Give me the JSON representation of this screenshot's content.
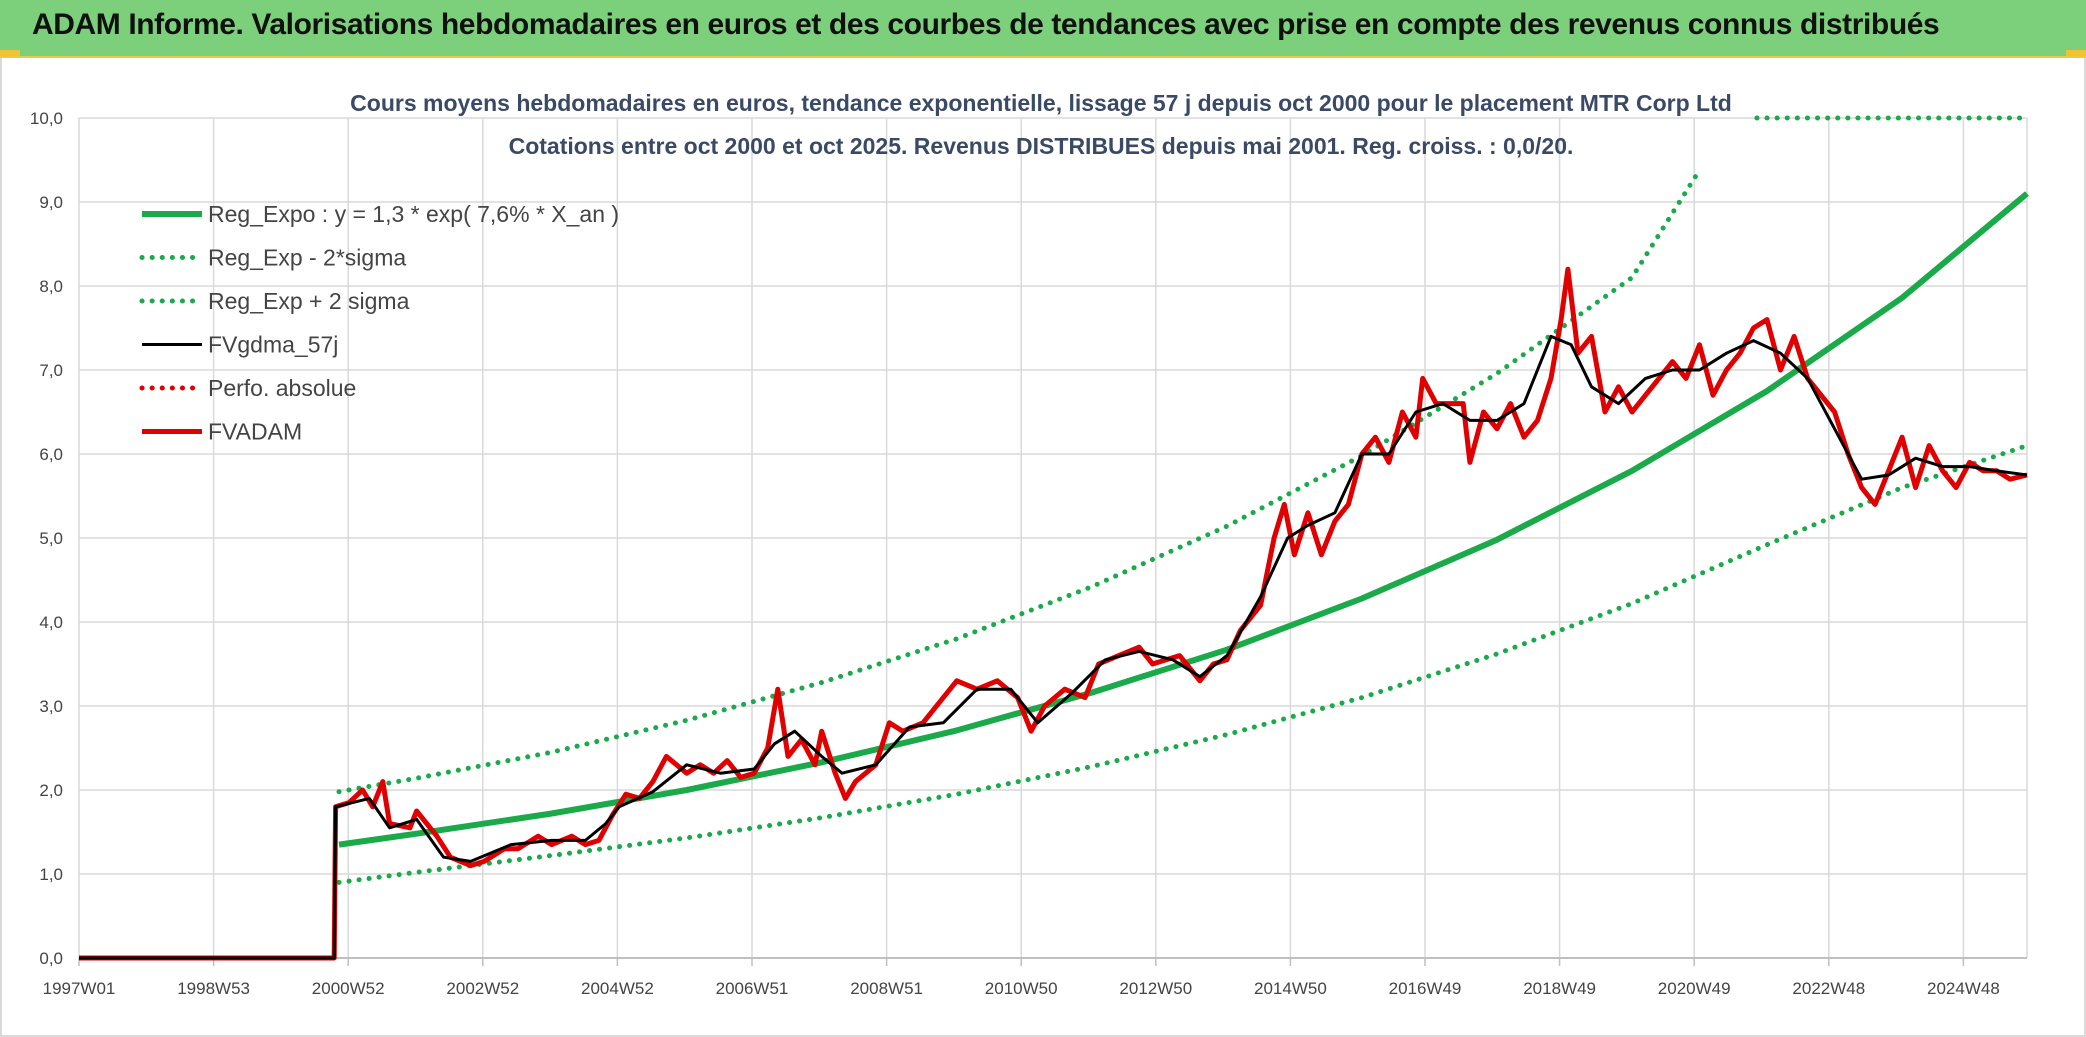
{
  "banner": {
    "title": "ADAM Informe. Valorisations hebdomadaires en euros et des courbes de tendances avec prise en compte des revenus connus distribués",
    "background": "#7dd07b"
  },
  "chart_data": {
    "type": "line",
    "title": "Cours moyens hebdomadaires en euros, tendance exponentielle, lissage 57 j depuis oct 2000 pour le placement MTR Corp Ltd",
    "subtitle": "Cotations entre oct 2000 et oct 2025. Revenus DISTRIBUES depuis mai 2001. Reg. croiss. : 0,0/20.",
    "xlabel": "",
    "ylabel": "",
    "x_ticks": [
      "1997W01",
      "1998W53",
      "2000W52",
      "2002W52",
      "2004W52",
      "2006W51",
      "2008W51",
      "2010W50",
      "2012W50",
      "2014W50",
      "2016W49",
      "2018W49",
      "2020W49",
      "2022W48",
      "2024W48"
    ],
    "y_ticks": [
      "0,0",
      "1,0",
      "2,0",
      "3,0",
      "4,0",
      "5,0",
      "6,0",
      "7,0",
      "8,0",
      "9,0",
      "10,0"
    ],
    "ylim": [
      0,
      10
    ],
    "xlim": [
      1997.0,
      2025.85
    ],
    "grid": true,
    "legend_position": "top-left",
    "series": [
      {
        "name": "Reg_Expo : y = 1,3 * exp( 7,6% *  X_an )",
        "color": "#1aaa4a",
        "style": "solid",
        "x": [
          2000.85,
          2002,
          2004,
          2006,
          2008,
          2010,
          2012,
          2014,
          2016,
          2018,
          2020,
          2022,
          2024,
          2025.85
        ],
        "values": [
          1.35,
          1.48,
          1.72,
          2.0,
          2.33,
          2.71,
          3.16,
          3.67,
          4.28,
          4.98,
          5.8,
          6.75,
          7.86,
          9.1
        ]
      },
      {
        "name": "Reg_Exp - 2*sigma",
        "color": "#1aaa4a",
        "style": "dotted",
        "x": [
          2000.85,
          2002,
          2004,
          2006,
          2008,
          2010,
          2012,
          2014,
          2016,
          2018,
          2020,
          2022,
          2024,
          2025.85
        ],
        "values": [
          0.9,
          1.02,
          1.22,
          1.43,
          1.67,
          1.95,
          2.28,
          2.66,
          3.1,
          3.62,
          4.22,
          4.92,
          5.6,
          6.1
        ]
      },
      {
        "name": "Reg_Exp + 2 sigma",
        "color": "#1aaa4a",
        "style": "dotted",
        "x": [
          2000.85,
          2002,
          2004,
          2006,
          2008,
          2010,
          2012,
          2014,
          2016,
          2018,
          2020,
          2021.0
        ],
        "values": [
          1.98,
          2.14,
          2.45,
          2.83,
          3.28,
          3.8,
          4.42,
          5.14,
          5.98,
          6.96,
          8.1,
          9.38
        ]
      },
      {
        "name": "",
        "color": "#1aaa4a",
        "style": "dotted",
        "x": [
          2021.85,
          2025.85
        ],
        "values": [
          10.0,
          10.0
        ]
      },
      {
        "name": "FVgdma_57j",
        "color": "#000000",
        "style": "solid",
        "x": [
          1997.0,
          2000.78,
          2000.8,
          2001.3,
          2001.6,
          2002.0,
          2002.4,
          2002.8,
          2003.4,
          2004.0,
          2004.5,
          2004.8,
          2005.0,
          2005.5,
          2006.0,
          2006.5,
          2007.0,
          2007.3,
          2007.6,
          2008.0,
          2008.3,
          2008.8,
          2009.3,
          2009.8,
          2010.3,
          2010.8,
          2011.2,
          2011.7,
          2012.2,
          2012.7,
          2013.2,
          2013.6,
          2014.0,
          2014.5,
          2014.9,
          2015.2,
          2015.6,
          2016.0,
          2016.4,
          2016.8,
          2017.2,
          2017.6,
          2018.0,
          2018.4,
          2018.8,
          2019.1,
          2019.4,
          2019.8,
          2020.2,
          2020.6,
          2021.0,
          2021.4,
          2021.8,
          2022.2,
          2022.6,
          2023.0,
          2023.4,
          2023.8,
          2024.2,
          2024.6,
          2025.0,
          2025.4,
          2025.85
        ],
        "values": [
          0.0,
          0.0,
          1.8,
          1.9,
          1.55,
          1.65,
          1.2,
          1.15,
          1.35,
          1.4,
          1.4,
          1.6,
          1.8,
          1.98,
          2.3,
          2.2,
          2.25,
          2.55,
          2.7,
          2.4,
          2.2,
          2.3,
          2.75,
          2.8,
          3.2,
          3.2,
          2.8,
          3.15,
          3.55,
          3.65,
          3.55,
          3.35,
          3.6,
          4.3,
          5.0,
          5.15,
          5.3,
          6.0,
          6.0,
          6.5,
          6.6,
          6.4,
          6.4,
          6.6,
          7.4,
          7.3,
          6.8,
          6.6,
          6.9,
          7.0,
          7.0,
          7.2,
          7.35,
          7.2,
          6.9,
          6.3,
          5.7,
          5.75,
          5.95,
          5.85,
          5.85,
          5.8,
          5.75
        ]
      },
      {
        "name": "Perfo. absolue",
        "color": "#e00000",
        "style": "dotted",
        "x": [],
        "values": []
      },
      {
        "name": "FVADAM",
        "color": "#e00000",
        "style": "solid",
        "x": [
          1997.0,
          2000.78,
          2000.8,
          2001.0,
          2001.2,
          2001.35,
          2001.5,
          2001.6,
          2001.9,
          2002.0,
          2002.3,
          2002.5,
          2002.8,
          2003.0,
          2003.3,
          2003.5,
          2003.8,
          2004.0,
          2004.3,
          2004.5,
          2004.7,
          2004.9,
          2005.1,
          2005.3,
          2005.5,
          2005.7,
          2006.0,
          2006.2,
          2006.4,
          2006.6,
          2006.8,
          2007.0,
          2007.2,
          2007.35,
          2007.5,
          2007.7,
          2007.9,
          2008.0,
          2008.2,
          2008.35,
          2008.5,
          2008.8,
          2009.0,
          2009.2,
          2009.5,
          2009.8,
          2010.0,
          2010.3,
          2010.6,
          2010.9,
          2011.1,
          2011.3,
          2011.6,
          2011.9,
          2012.1,
          2012.4,
          2012.7,
          2012.9,
          2013.1,
          2013.3,
          2013.6,
          2013.8,
          2014.0,
          2014.2,
          2014.5,
          2014.7,
          2014.85,
          2015.0,
          2015.2,
          2015.4,
          2015.6,
          2015.8,
          2016.0,
          2016.2,
          2016.4,
          2016.6,
          2016.8,
          2016.9,
          2017.1,
          2017.3,
          2017.5,
          2017.6,
          2017.8,
          2018.0,
          2018.2,
          2018.4,
          2018.6,
          2018.8,
          2018.95,
          2019.05,
          2019.2,
          2019.4,
          2019.6,
          2019.8,
          2020.0,
          2020.2,
          2020.4,
          2020.6,
          2020.8,
          2021.0,
          2021.2,
          2021.4,
          2021.6,
          2021.8,
          2022.0,
          2022.2,
          2022.4,
          2022.6,
          2022.8,
          2023.0,
          2023.2,
          2023.4,
          2023.6,
          2023.8,
          2024.0,
          2024.2,
          2024.4,
          2024.6,
          2024.8,
          2025.0,
          2025.2,
          2025.4,
          2025.6,
          2025.85
        ],
        "values": [
          0.0,
          0.0,
          1.8,
          1.85,
          2.0,
          1.8,
          2.1,
          1.6,
          1.55,
          1.75,
          1.45,
          1.2,
          1.1,
          1.15,
          1.3,
          1.3,
          1.45,
          1.35,
          1.45,
          1.35,
          1.4,
          1.7,
          1.95,
          1.9,
          2.1,
          2.4,
          2.2,
          2.3,
          2.2,
          2.35,
          2.15,
          2.2,
          2.5,
          3.2,
          2.4,
          2.6,
          2.3,
          2.7,
          2.2,
          1.9,
          2.1,
          2.3,
          2.8,
          2.7,
          2.8,
          3.1,
          3.3,
          3.2,
          3.3,
          3.1,
          2.7,
          3.0,
          3.2,
          3.1,
          3.5,
          3.6,
          3.7,
          3.5,
          3.55,
          3.6,
          3.3,
          3.5,
          3.55,
          3.9,
          4.2,
          5.0,
          5.4,
          4.8,
          5.3,
          4.8,
          5.2,
          5.4,
          6.0,
          6.2,
          5.9,
          6.5,
          6.2,
          6.9,
          6.6,
          6.6,
          6.6,
          5.9,
          6.5,
          6.3,
          6.6,
          6.2,
          6.4,
          6.9,
          7.6,
          8.2,
          7.2,
          7.4,
          6.5,
          6.8,
          6.5,
          6.7,
          6.9,
          7.1,
          6.9,
          7.3,
          6.7,
          7.0,
          7.2,
          7.5,
          7.6,
          7.0,
          7.4,
          6.9,
          6.7,
          6.5,
          6.0,
          5.6,
          5.4,
          5.8,
          6.2,
          5.6,
          6.1,
          5.8,
          5.6,
          5.9,
          5.8,
          5.8,
          5.7,
          5.75
        ]
      }
    ]
  }
}
